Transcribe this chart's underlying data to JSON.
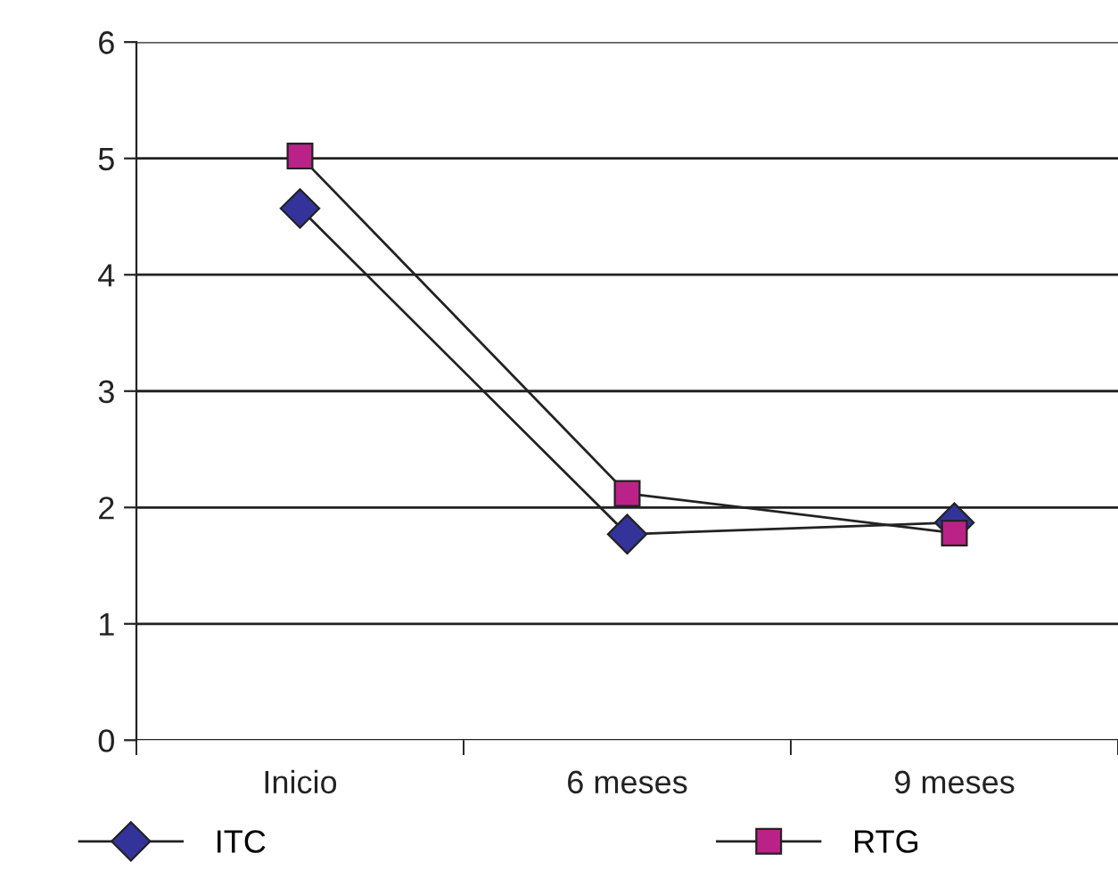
{
  "chart_data": {
    "type": "line",
    "categories": [
      "Inicio",
      "6 meses",
      "9 meses"
    ],
    "series": [
      {
        "name": "ITC",
        "color": "#333399",
        "marker": "diamond",
        "values": [
          4.57,
          1.77,
          1.87
        ]
      },
      {
        "name": "RTG",
        "color": "#bb2288",
        "marker": "square",
        "values": [
          5.02,
          2.12,
          1.78
        ]
      }
    ],
    "ylim": [
      0,
      6
    ],
    "yticks": [
      0,
      1,
      2,
      3,
      4,
      5,
      6
    ],
    "grid": "y",
    "legend": "bottom",
    "line_style": "solid"
  }
}
